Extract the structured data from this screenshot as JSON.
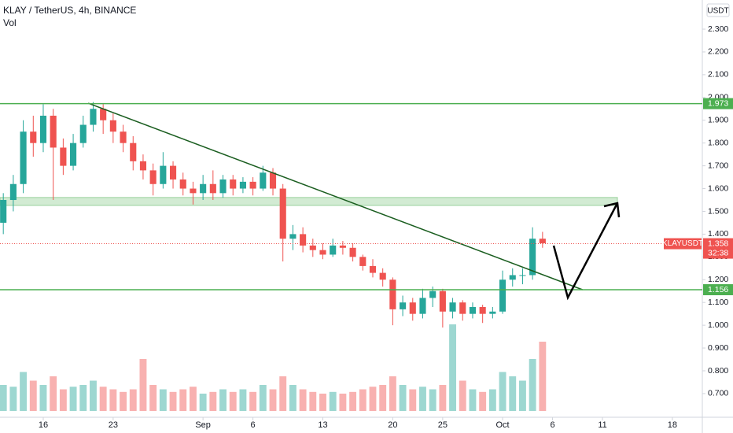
{
  "chart_data": {
    "type": "candlestick",
    "title": "KLAY / TetherUS, 4h, BINANCE",
    "subtitle": "Vol",
    "currency": "USDT",
    "xlim": [
      -4.33,
      66
    ],
    "ylim": [
      0.596,
      2.428
    ],
    "xticks": [
      {
        "value": 0,
        "label": "16"
      },
      {
        "value": 7,
        "label": "23"
      },
      {
        "value": 16,
        "label": "Sep"
      },
      {
        "value": 21,
        "label": "6"
      },
      {
        "value": 28,
        "label": "13"
      },
      {
        "value": 35,
        "label": "20"
      },
      {
        "value": 40,
        "label": "25"
      },
      {
        "value": 46,
        "label": "Oct"
      },
      {
        "value": 51,
        "label": "6"
      },
      {
        "value": 56,
        "label": "11"
      },
      {
        "value": 63,
        "label": "18"
      }
    ],
    "yticks": [
      {
        "value": 0.7,
        "label": "0.700"
      },
      {
        "value": 0.8,
        "label": "0.800"
      },
      {
        "value": 0.9,
        "label": "0.900"
      },
      {
        "value": 1.0,
        "label": "1.000"
      },
      {
        "value": 1.1,
        "label": "1.100"
      },
      {
        "value": 1.2,
        "label": "1.200"
      },
      {
        "value": 1.3,
        "label": "1.300"
      },
      {
        "value": 1.4,
        "label": "1.400"
      },
      {
        "value": 1.5,
        "label": "1.500"
      },
      {
        "value": 1.6,
        "label": "1.600"
      },
      {
        "value": 1.7,
        "label": "1.700"
      },
      {
        "value": 1.8,
        "label": "1.800"
      },
      {
        "value": 1.9,
        "label": "1.900"
      },
      {
        "value": 2.0,
        "label": "2.000"
      },
      {
        "value": 2.1,
        "label": "2.100"
      },
      {
        "value": 2.2,
        "label": "2.200"
      },
      {
        "value": 2.3,
        "label": "2.300"
      }
    ],
    "up_color": "#26a69a",
    "down_color": "#ef5350",
    "x": [
      -4,
      -3,
      -2,
      -1,
      0,
      1,
      2,
      3,
      4,
      5,
      6,
      7,
      8,
      9,
      10,
      11,
      12,
      13,
      14,
      15,
      16,
      17,
      18,
      19,
      20,
      21,
      22,
      23,
      24,
      25,
      26,
      27,
      28,
      29,
      30,
      31,
      32,
      33,
      34,
      35,
      36,
      37,
      38,
      39,
      40,
      41,
      42,
      43,
      44,
      45,
      46,
      47,
      48,
      49,
      50
    ],
    "open": [
      1.45,
      1.55,
      1.62,
      1.85,
      1.8,
      1.92,
      1.78,
      1.7,
      1.8,
      1.88,
      1.95,
      1.9,
      1.85,
      1.8,
      1.72,
      1.68,
      1.62,
      1.7,
      1.64,
      1.6,
      1.58,
      1.62,
      1.58,
      1.64,
      1.6,
      1.63,
      1.6,
      1.67,
      1.6,
      1.38,
      1.4,
      1.35,
      1.33,
      1.31,
      1.35,
      1.34,
      1.3,
      1.26,
      1.23,
      1.2,
      1.07,
      1.1,
      1.05,
      1.12,
      1.15,
      1.06,
      1.1,
      1.05,
      1.08,
      1.05,
      1.06,
      1.2,
      1.22,
      1.22,
      1.38
    ],
    "high": [
      1.58,
      1.66,
      1.9,
      1.92,
      1.97,
      1.95,
      1.82,
      1.84,
      1.92,
      1.98,
      1.97,
      1.93,
      1.88,
      1.83,
      1.75,
      1.71,
      1.76,
      1.72,
      1.67,
      1.63,
      1.66,
      1.68,
      1.66,
      1.66,
      1.65,
      1.65,
      1.7,
      1.69,
      1.62,
      1.44,
      1.43,
      1.38,
      1.36,
      1.38,
      1.37,
      1.36,
      1.31,
      1.29,
      1.25,
      1.21,
      1.13,
      1.12,
      1.16,
      1.17,
      1.16,
      1.12,
      1.11,
      1.1,
      1.09,
      1.08,
      1.24,
      1.25,
      1.25,
      1.43,
      1.41
    ],
    "low": [
      1.4,
      1.5,
      1.58,
      1.74,
      1.76,
      1.55,
      1.66,
      1.68,
      1.78,
      1.85,
      1.84,
      1.8,
      1.76,
      1.68,
      1.64,
      1.57,
      1.6,
      1.6,
      1.57,
      1.53,
      1.55,
      1.55,
      1.56,
      1.57,
      1.58,
      1.57,
      1.59,
      1.57,
      1.28,
      1.33,
      1.32,
      1.3,
      1.29,
      1.3,
      1.31,
      1.28,
      1.24,
      1.21,
      1.17,
      1.0,
      1.04,
      1.02,
      1.03,
      1.08,
      0.99,
      1.03,
      1.02,
      1.03,
      1.01,
      1.03,
      1.05,
      1.17,
      1.18,
      1.2,
      1.34
    ],
    "close": [
      1.55,
      1.62,
      1.85,
      1.8,
      1.92,
      1.78,
      1.7,
      1.8,
      1.88,
      1.95,
      1.9,
      1.85,
      1.8,
      1.72,
      1.68,
      1.62,
      1.7,
      1.64,
      1.6,
      1.58,
      1.62,
      1.58,
      1.64,
      1.6,
      1.63,
      1.6,
      1.67,
      1.6,
      1.38,
      1.4,
      1.35,
      1.33,
      1.31,
      1.35,
      1.34,
      1.3,
      1.26,
      1.23,
      1.2,
      1.07,
      1.1,
      1.05,
      1.12,
      1.15,
      1.06,
      1.1,
      1.05,
      1.08,
      1.05,
      1.06,
      1.2,
      1.22,
      1.22,
      1.38,
      1.36
    ],
    "volume": [
      30,
      28,
      45,
      35,
      30,
      40,
      25,
      28,
      30,
      35,
      28,
      25,
      22,
      25,
      60,
      30,
      25,
      22,
      25,
      28,
      20,
      22,
      25,
      22,
      25,
      22,
      30,
      25,
      40,
      30,
      25,
      22,
      20,
      22,
      20,
      22,
      25,
      28,
      30,
      40,
      30,
      25,
      28,
      25,
      30,
      100,
      35,
      25,
      22,
      25,
      45,
      40,
      35,
      60,
      80
    ],
    "volume_lim": [
      0,
      100
    ],
    "levels": [
      1.973,
      1.156
    ],
    "level_color": "#4caf50",
    "zone": {
      "x": [
        -4.33,
        57.5
      ],
      "y": [
        1.526,
        1.561
      ]
    },
    "trendline": {
      "x": [
        4.5,
        54
      ],
      "y": [
        1.975,
        1.156
      ]
    },
    "last": {
      "label": "KLAYUSDT",
      "value": 1.358,
      "timer": "32:38"
    }
  }
}
